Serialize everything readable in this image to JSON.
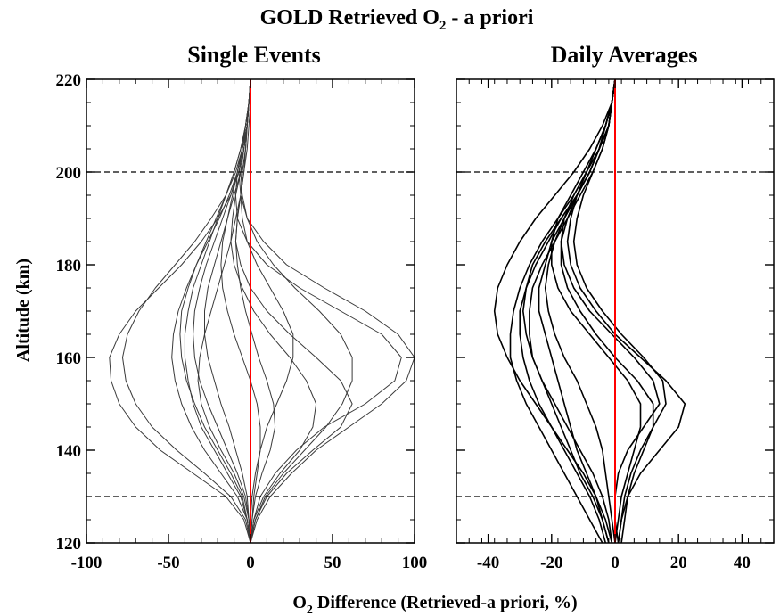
{
  "figure": {
    "title_main": "GOLD Retrieved O",
    "title_sub": "2",
    "title_rest": " - a priori",
    "xlabel_main": "O",
    "xlabel_sub": "2",
    "xlabel_rest": " Difference (Retrieved-a priori, %)",
    "ylabel": "Altitude (km)"
  },
  "colors": {
    "profiles_single": "#3a3a3a",
    "profiles_daily": "#000000",
    "zero_line": "#ff0000",
    "reference_lines": "#000000"
  },
  "chart_data": [
    {
      "type": "line",
      "title": "Single Events",
      "xlim": [
        -100,
        100
      ],
      "ylim": [
        120,
        220
      ],
      "xticks": [
        -100,
        -50,
        0,
        50,
        100
      ],
      "yticks": [
        120,
        140,
        160,
        180,
        200,
        220
      ],
      "xtick_labels": [
        "-100",
        "-50",
        "0",
        "50",
        "100"
      ],
      "ytick_labels": [
        "120",
        "140",
        "160",
        "180",
        "200",
        "220"
      ],
      "reference_lines": [
        200,
        130
      ],
      "zero_line": 0,
      "altitudes": [
        120,
        125,
        130,
        135,
        140,
        145,
        150,
        155,
        160,
        165,
        170,
        175,
        180,
        185,
        190,
        195,
        200,
        205,
        210,
        215,
        220
      ],
      "series": [
        {
          "values": [
            0,
            1,
            3,
            7,
            12,
            15,
            14,
            10,
            5,
            1,
            -3,
            -6,
            -8,
            -9,
            -8,
            -6,
            -5,
            -3,
            -2,
            -1,
            0
          ]
        },
        {
          "values": [
            0,
            -2,
            -6,
            -14,
            -22,
            -30,
            -35,
            -38,
            -40,
            -40,
            -38,
            -35,
            -30,
            -25,
            -20,
            -15,
            -10,
            -6,
            -3,
            -1,
            0
          ]
        },
        {
          "values": [
            0,
            3,
            10,
            22,
            38,
            55,
            62,
            55,
            40,
            24,
            10,
            0,
            -6,
            -9,
            -8,
            -6,
            -4,
            -3,
            -2,
            -1,
            0
          ]
        },
        {
          "values": [
            0,
            -3,
            -12,
            -28,
            -45,
            -60,
            -70,
            -76,
            -78,
            -75,
            -68,
            -58,
            -46,
            -34,
            -24,
            -15,
            -9,
            -5,
            -2,
            -1,
            0
          ]
        },
        {
          "values": [
            0,
            2,
            6,
            15,
            28,
            45,
            70,
            88,
            92,
            80,
            55,
            30,
            10,
            -2,
            -8,
            -9,
            -8,
            -5,
            -3,
            -1,
            0
          ]
        },
        {
          "values": [
            0,
            -1,
            -4,
            -10,
            -18,
            -25,
            -30,
            -32,
            -31,
            -28,
            -24,
            -20,
            -16,
            -12,
            -9,
            -6,
            -4,
            -2,
            -1,
            0,
            0
          ]
        },
        {
          "values": [
            0,
            4,
            12,
            25,
            40,
            60,
            80,
            95,
            100,
            90,
            70,
            45,
            22,
            8,
            -2,
            -6,
            -7,
            -5,
            -3,
            -1,
            0
          ]
        },
        {
          "values": [
            0,
            -4,
            -15,
            -35,
            -55,
            -70,
            -80,
            -85,
            -86,
            -80,
            -70,
            -56,
            -42,
            -30,
            -20,
            -12,
            -7,
            -4,
            -2,
            -1,
            0
          ]
        },
        {
          "values": [
            0,
            1,
            2,
            4,
            6,
            6,
            4,
            0,
            -5,
            -10,
            -14,
            -17,
            -18,
            -17,
            -14,
            -11,
            -8,
            -5,
            -3,
            -1,
            0
          ]
        },
        {
          "values": [
            0,
            -1,
            -3,
            -8,
            -14,
            -20,
            -26,
            -31,
            -34,
            -35,
            -34,
            -31,
            -27,
            -22,
            -17,
            -12,
            -8,
            -5,
            -2,
            -1,
            0
          ]
        },
        {
          "values": [
            0,
            2,
            8,
            18,
            30,
            38,
            40,
            34,
            24,
            12,
            2,
            -5,
            -10,
            -12,
            -11,
            -9,
            -6,
            -4,
            -2,
            -1,
            0
          ]
        },
        {
          "values": [
            0,
            -2,
            -8,
            -18,
            -28,
            -36,
            -42,
            -46,
            -48,
            -47,
            -44,
            -39,
            -33,
            -26,
            -19,
            -13,
            -8,
            -5,
            -2,
            -1,
            0
          ]
        },
        {
          "values": [
            0,
            0,
            1,
            3,
            6,
            10,
            16,
            22,
            26,
            26,
            20,
            12,
            4,
            -2,
            -5,
            -6,
            -5,
            -3,
            -2,
            -1,
            0
          ]
        },
        {
          "values": [
            0,
            -1,
            -2,
            -5,
            -9,
            -13,
            -18,
            -22,
            -26,
            -28,
            -28,
            -26,
            -22,
            -18,
            -14,
            -10,
            -6,
            -4,
            -2,
            -1,
            0
          ]
        },
        {
          "values": [
            0,
            3,
            9,
            20,
            33,
            46,
            56,
            62,
            62,
            55,
            42,
            27,
            14,
            4,
            -2,
            -5,
            -6,
            -4,
            -2,
            -1,
            0
          ]
        },
        {
          "values": [
            0,
            -2,
            -5,
            -12,
            -20,
            -28,
            -34,
            -39,
            -42,
            -43,
            -42,
            -38,
            -33,
            -27,
            -21,
            -15,
            -10,
            -6,
            -3,
            -1,
            0
          ]
        }
      ]
    },
    {
      "type": "line",
      "title": "Daily Averages",
      "xlim": [
        -50,
        50
      ],
      "ylim": [
        120,
        220
      ],
      "xticks": [
        -40,
        -20,
        0,
        20,
        40
      ],
      "yticks": [
        120,
        140,
        160,
        180,
        200,
        220
      ],
      "xtick_labels": [
        "-40",
        "-20",
        "0",
        "20",
        "40"
      ],
      "ytick_labels": [
        "120",
        "140",
        "160",
        "180",
        "200",
        "220"
      ],
      "reference_lines": [
        200,
        130
      ],
      "zero_line": 0,
      "altitudes": [
        120,
        125,
        130,
        135,
        140,
        145,
        150,
        155,
        160,
        165,
        170,
        175,
        180,
        185,
        190,
        195,
        200,
        205,
        210,
        215,
        220
      ],
      "series": [
        {
          "values": [
            -2,
            -4,
            -6,
            -9,
            -12,
            -14,
            -16,
            -18,
            -20,
            -22,
            -24,
            -24,
            -22,
            -20,
            -16,
            -12,
            -8,
            -5,
            -3,
            -1,
            0
          ]
        },
        {
          "values": [
            -1,
            -3,
            -6,
            -10,
            -15,
            -20,
            -25,
            -30,
            -34,
            -37,
            -38,
            -37,
            -34,
            -30,
            -25,
            -19,
            -13,
            -8,
            -4,
            -1,
            0
          ]
        },
        {
          "values": [
            1,
            2,
            4,
            8,
            14,
            20,
            22,
            16,
            8,
            0,
            -6,
            -11,
            -14,
            -15,
            -14,
            -12,
            -9,
            -6,
            -3,
            -1,
            0
          ]
        },
        {
          "values": [
            -3,
            -5,
            -8,
            -12,
            -16,
            -20,
            -24,
            -27,
            -29,
            -30,
            -30,
            -28,
            -25,
            -21,
            -17,
            -12,
            -8,
            -5,
            -2,
            -1,
            0
          ]
        },
        {
          "values": [
            0,
            1,
            2,
            4,
            6,
            8,
            8,
            4,
            -2,
            -8,
            -14,
            -18,
            -20,
            -20,
            -18,
            -14,
            -10,
            -6,
            -3,
            -1,
            0
          ]
        },
        {
          "values": [
            -2,
            -4,
            -7,
            -11,
            -14,
            -17,
            -20,
            -23,
            -26,
            -27,
            -27,
            -26,
            -23,
            -19,
            -15,
            -11,
            -7,
            -4,
            -2,
            -1,
            0
          ]
        },
        {
          "values": [
            1,
            0,
            0,
            1,
            4,
            9,
            14,
            12,
            6,
            -1,
            -8,
            -13,
            -16,
            -17,
            -16,
            -13,
            -9,
            -6,
            -3,
            -1,
            0
          ]
        },
        {
          "values": [
            -4,
            -8,
            -12,
            -16,
            -20,
            -24,
            -28,
            -31,
            -33,
            -33,
            -32,
            -30,
            -27,
            -23,
            -18,
            -13,
            -9,
            -5,
            -2,
            -1,
            0
          ]
        },
        {
          "values": [
            0,
            -1,
            -2,
            -3,
            -4,
            -6,
            -9,
            -12,
            -16,
            -19,
            -21,
            -22,
            -21,
            -19,
            -16,
            -12,
            -8,
            -5,
            -2,
            -1,
            0
          ]
        },
        {
          "values": [
            2,
            3,
            4,
            6,
            9,
            12,
            12,
            7,
            0,
            -6,
            -11,
            -15,
            -17,
            -17,
            -15,
            -12,
            -8,
            -5,
            -3,
            -1,
            0
          ]
        },
        {
          "values": [
            -1,
            -2,
            -4,
            -7,
            -11,
            -15,
            -19,
            -23,
            -26,
            -28,
            -29,
            -28,
            -26,
            -22,
            -17,
            -12,
            -8,
            -5,
            -2,
            -1,
            0
          ]
        },
        {
          "values": [
            1,
            2,
            3,
            5,
            8,
            12,
            16,
            15,
            9,
            2,
            -4,
            -9,
            -12,
            -13,
            -12,
            -10,
            -7,
            -4,
            -2,
            -1,
            0
          ]
        }
      ]
    }
  ]
}
